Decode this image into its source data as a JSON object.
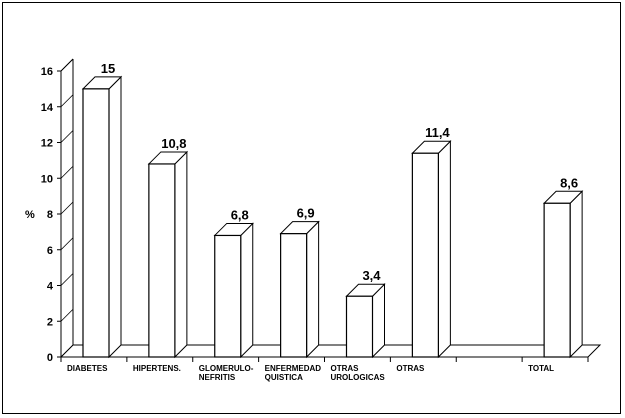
{
  "chart_data": {
    "type": "bar",
    "title": "",
    "xlabel": "",
    "ylabel": "%",
    "ylim": [
      0,
      16
    ],
    "yticks": [
      0,
      2,
      4,
      6,
      8,
      10,
      12,
      14,
      16
    ],
    "style": "3d",
    "grid": false,
    "legend": "none",
    "categories": [
      [
        "DIABETES"
      ],
      [
        "HIPERTENS."
      ],
      [
        "GLOMERULO-",
        "NEFRITIS"
      ],
      [
        "ENFERMEDAD",
        "QUISTICA"
      ],
      [
        "OTRAS",
        "UROLOGICAS"
      ],
      [
        "OTRAS"
      ],
      [
        ""
      ],
      [
        "TOTAL"
      ]
    ],
    "values": [
      15,
      10.8,
      6.8,
      6.9,
      3.4,
      11.4,
      null,
      8.6
    ],
    "value_labels": [
      "15",
      "10,8",
      "6,8",
      "6,9",
      "3,4",
      "11,4",
      "",
      "8,6"
    ],
    "colors": {
      "bar_fill": "#ffffff",
      "bar_stroke": "#000000"
    }
  }
}
